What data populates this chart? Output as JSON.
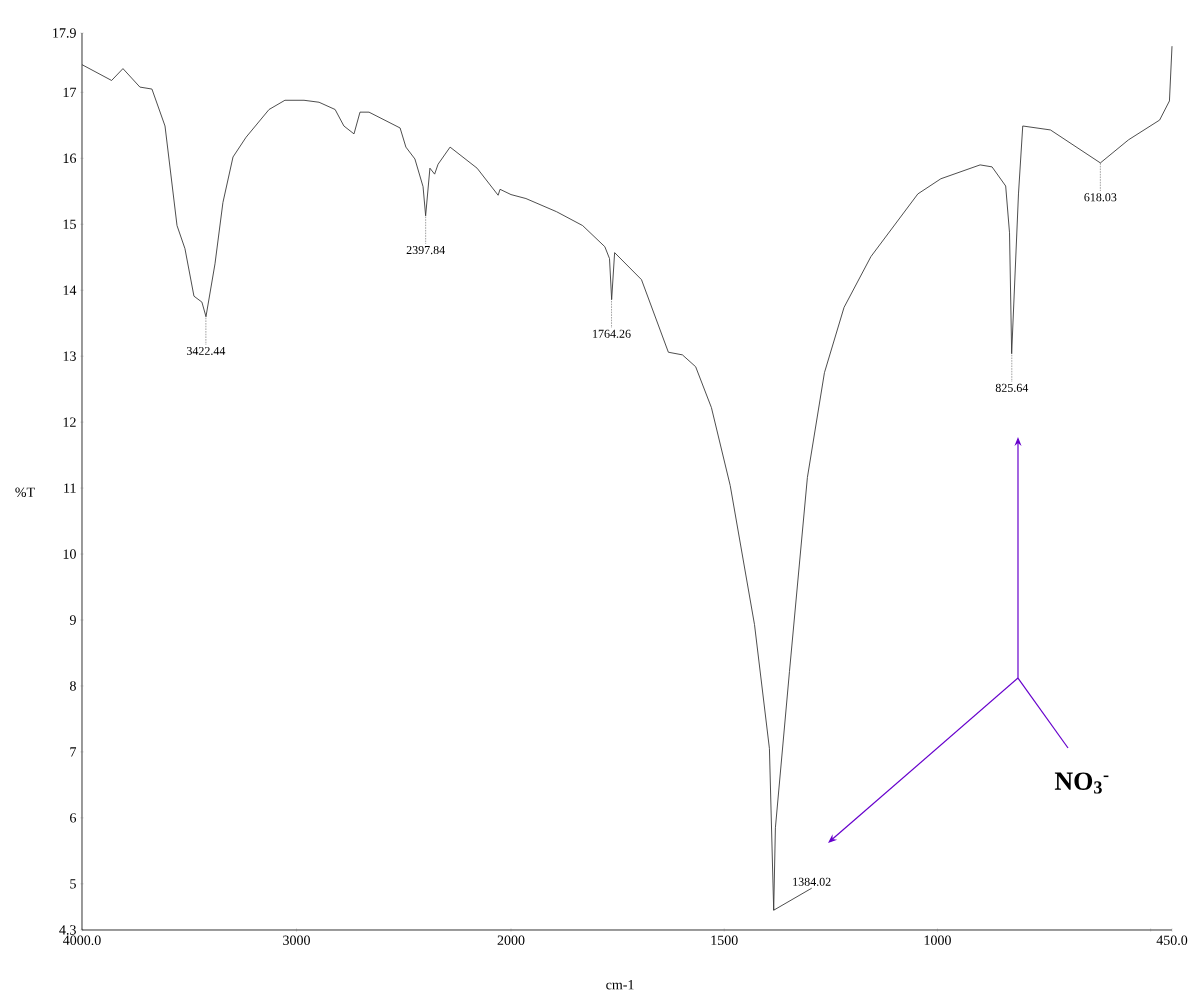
{
  "chart_data": [
    {
      "type": "line",
      "ylabel": "%T",
      "color": "#3a3a3a",
      "x": [
        4000,
        3862,
        3809,
        3730,
        3674,
        3613,
        3557,
        3520,
        3478,
        3441,
        3422,
        3380,
        3343,
        3296,
        3235,
        3128,
        3054,
        2965,
        2895,
        2820,
        2779,
        2732,
        2704,
        2662,
        2517,
        2490,
        2448,
        2410,
        2398,
        2378,
        2356,
        2340,
        2284,
        2158,
        2060,
        2051,
        2000
      ],
      "values": [
        17.42,
        17.18,
        17.36,
        17.08,
        17.05,
        16.49,
        14.98,
        14.63,
        13.91,
        13.82,
        13.6,
        14.4,
        15.33,
        16.02,
        16.32,
        16.74,
        16.88,
        16.88,
        16.85,
        16.74,
        16.49,
        16.37,
        16.7,
        16.7,
        16.46,
        16.17,
        15.99,
        15.57,
        15.13,
        15.85,
        15.76,
        15.91,
        16.17,
        15.85,
        15.44,
        15.53,
        15.45
      ],
      "xlim": [
        4000,
        2000
      ],
      "ylim": [
        4.3,
        17.9
      ],
      "xticks": [
        {
          "value": 4000,
          "label": "4000.0"
        },
        3000,
        2000
      ],
      "yticks": [
        4.3,
        5,
        6,
        7,
        8,
        9,
        10,
        11,
        12,
        13,
        14,
        15,
        16,
        17,
        17.9
      ],
      "annotations": [
        {
          "text": "3422.44",
          "x": 3422.44,
          "y": 13.6
        },
        {
          "text": "2397.84",
          "x": 2397.84,
          "y": 15.13
        }
      ]
    },
    {
      "type": "line",
      "xlabel": "cm-1",
      "color": "#3a3a3a",
      "tick_labels": "x",
      "x": [
        2000,
        1965,
        1893,
        1832,
        1780,
        1769,
        1764,
        1757,
        1694,
        1631,
        1598,
        1567,
        1530,
        1486,
        1429,
        1394,
        1384,
        1380,
        1347,
        1305,
        1265,
        1219,
        1156,
        1046,
        992,
        900,
        872,
        840,
        831,
        826,
        810,
        800,
        735,
        618,
        552,
        479,
        456,
        450
      ],
      "values": [
        15.45,
        15.39,
        15.19,
        14.98,
        14.66,
        14.48,
        13.86,
        14.57,
        14.16,
        13.06,
        13.02,
        12.84,
        12.22,
        11.04,
        8.93,
        7.05,
        4.6,
        5.85,
        8.22,
        11.16,
        12.75,
        13.74,
        14.51,
        15.46,
        15.69,
        15.9,
        15.87,
        15.58,
        14.87,
        13.04,
        15.46,
        16.49,
        16.43,
        15.93,
        16.28,
        16.58,
        16.87,
        17.7
      ],
      "xlim": [
        2000,
        450
      ],
      "ylim": [
        4.3,
        17.9
      ],
      "xticks": [
        1500,
        1000,
        {
          "value": 500,
          "label": null
        },
        {
          "value": 450,
          "label": "450.0"
        }
      ],
      "annotations": [
        {
          "text": "1764.26",
          "x": 1764.26,
          "y": 13.86
        },
        {
          "text": "1384.02",
          "x": 1384.02,
          "y": 4.6
        },
        {
          "text": "825.64",
          "x": 825.64,
          "y": 13.04
        },
        {
          "text": "618.03",
          "x": 618.03,
          "y": 15.93
        },
        "NO$_{3}$$^{-}$"
      ]
    }
  ]
}
